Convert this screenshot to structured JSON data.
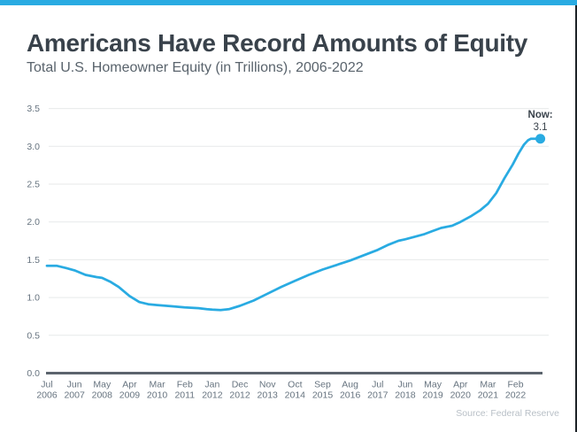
{
  "page": {
    "accent_color": "#29abe2",
    "title": "Americans Have Record Amounts of Equity",
    "subtitle": "Total U.S. Homeowner Equity (in Trillions), 2006-2022",
    "source": "Source: Federal Reserve"
  },
  "chart_data": {
    "type": "line",
    "title": "Americans Have Record Amounts of Equity",
    "subtitle": "Total U.S. Homeowner Equity (in Trillions), 2006-2022",
    "xlabel": "",
    "ylabel": "",
    "ylim": [
      0.0,
      3.5
    ],
    "yticks": [
      "0.0",
      "0.5",
      "1.0",
      "1.5",
      "2.0",
      "2.5",
      "3.0",
      "3.5"
    ],
    "grid": true,
    "legend": false,
    "line_color": "#29abe2",
    "gridline_color": "#e7e9ea",
    "axis_color": "#5c646d",
    "tick_label_color": "#66737f",
    "annotation_color": "#3a434c",
    "x_ticks": [
      {
        "month": "Jul",
        "year": "2006"
      },
      {
        "month": "Jun",
        "year": "2007"
      },
      {
        "month": "May",
        "year": "2008"
      },
      {
        "month": "Apr",
        "year": "2009"
      },
      {
        "month": "Mar",
        "year": "2010"
      },
      {
        "month": "Feb",
        "year": "2011"
      },
      {
        "month": "Jan",
        "year": "2012"
      },
      {
        "month": "Dec",
        "year": "2012"
      },
      {
        "month": "Nov",
        "year": "2013"
      },
      {
        "month": "Oct",
        "year": "2014"
      },
      {
        "month": "Sep",
        "year": "2015"
      },
      {
        "month": "Aug",
        "year": "2016"
      },
      {
        "month": "Jul",
        "year": "2017"
      },
      {
        "month": "Jun",
        "year": "2018"
      },
      {
        "month": "May",
        "year": "2019"
      },
      {
        "month": "Apr",
        "year": "2020"
      },
      {
        "month": "Mar",
        "year": "2021"
      },
      {
        "month": "Feb",
        "year": "2022"
      }
    ],
    "values_at_ticks": [
      1.42,
      1.36,
      1.26,
      1.02,
      0.9,
      0.87,
      0.84,
      0.89,
      1.05,
      1.22,
      1.37,
      1.49,
      1.63,
      1.77,
      1.88,
      2.0,
      2.24,
      2.8
    ],
    "annotation": {
      "label": "Now:",
      "value": "3.1"
    },
    "end_value": 3.1,
    "samples": [
      [
        0,
        1.42
      ],
      [
        0.35,
        1.42
      ],
      [
        0.7,
        1.39
      ],
      [
        1,
        1.36
      ],
      [
        1.4,
        1.3
      ],
      [
        1.8,
        1.27
      ],
      [
        2,
        1.26
      ],
      [
        2.3,
        1.21
      ],
      [
        2.6,
        1.14
      ],
      [
        3,
        1.02
      ],
      [
        3.35,
        0.94
      ],
      [
        3.7,
        0.91
      ],
      [
        4,
        0.9
      ],
      [
        4.5,
        0.885
      ],
      [
        5,
        0.87
      ],
      [
        5.5,
        0.86
      ],
      [
        5.8,
        0.845
      ],
      [
        6,
        0.84
      ],
      [
        6.3,
        0.835
      ],
      [
        6.6,
        0.845
      ],
      [
        7,
        0.89
      ],
      [
        7.5,
        0.96
      ],
      [
        8,
        1.05
      ],
      [
        8.5,
        1.14
      ],
      [
        9,
        1.22
      ],
      [
        9.5,
        1.3
      ],
      [
        10,
        1.37
      ],
      [
        10.5,
        1.43
      ],
      [
        11,
        1.49
      ],
      [
        11.5,
        1.56
      ],
      [
        12,
        1.63
      ],
      [
        12.4,
        1.7
      ],
      [
        12.75,
        1.75
      ],
      [
        13,
        1.77
      ],
      [
        13.3,
        1.8
      ],
      [
        13.7,
        1.84
      ],
      [
        14,
        1.88
      ],
      [
        14.3,
        1.92
      ],
      [
        14.7,
        1.95
      ],
      [
        15,
        2.0
      ],
      [
        15.4,
        2.08
      ],
      [
        15.7,
        2.15
      ],
      [
        16,
        2.24
      ],
      [
        16.3,
        2.38
      ],
      [
        16.6,
        2.58
      ],
      [
        16.9,
        2.76
      ],
      [
        17.1,
        2.9
      ],
      [
        17.3,
        3.02
      ],
      [
        17.45,
        3.08
      ],
      [
        17.55,
        3.1
      ],
      [
        17.9,
        3.1
      ]
    ]
  }
}
